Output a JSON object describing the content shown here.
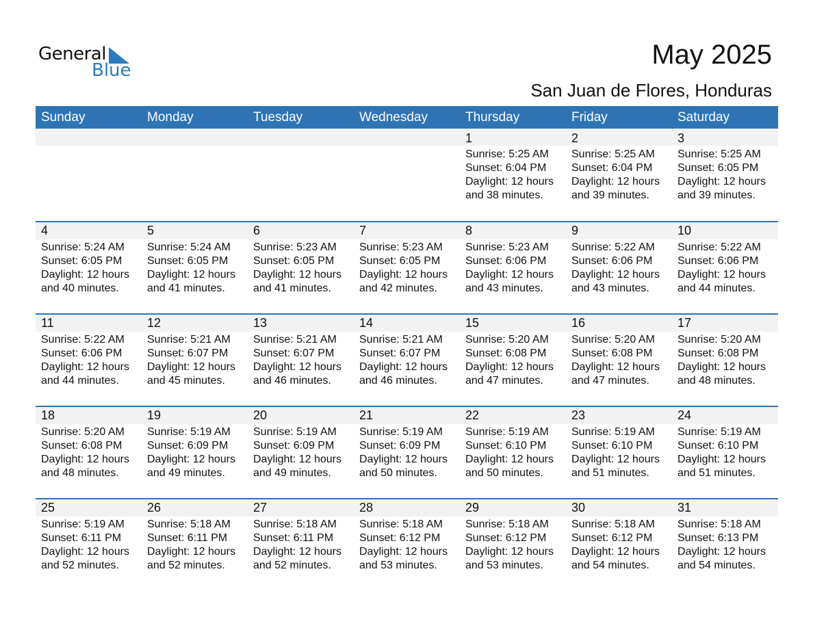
{
  "logo": {
    "line1": "General",
    "line2": "Blue"
  },
  "title": "May 2025",
  "subtitle": "San Juan de Flores, Honduras",
  "colors": {
    "header": "#2e74b5",
    "band": "#f2f2f2",
    "logo_blue": "#2a7bc0"
  },
  "weekdays": [
    "Sunday",
    "Monday",
    "Tuesday",
    "Wednesday",
    "Thursday",
    "Friday",
    "Saturday"
  ],
  "labels": {
    "sunrise": "Sunrise:",
    "sunset": "Sunset:",
    "daylight": "Daylight:",
    "and": "and"
  },
  "first_weekday_index": 4,
  "days": [
    {
      "date": "1",
      "sunrise": "5:25 AM",
      "sunset": "6:04 PM",
      "hours": "12 hours",
      "minutes": "38 minutes."
    },
    {
      "date": "2",
      "sunrise": "5:25 AM",
      "sunset": "6:04 PM",
      "hours": "12 hours",
      "minutes": "39 minutes."
    },
    {
      "date": "3",
      "sunrise": "5:25 AM",
      "sunset": "6:05 PM",
      "hours": "12 hours",
      "minutes": "39 minutes."
    },
    {
      "date": "4",
      "sunrise": "5:24 AM",
      "sunset": "6:05 PM",
      "hours": "12 hours",
      "minutes": "40 minutes."
    },
    {
      "date": "5",
      "sunrise": "5:24 AM",
      "sunset": "6:05 PM",
      "hours": "12 hours",
      "minutes": "41 minutes."
    },
    {
      "date": "6",
      "sunrise": "5:23 AM",
      "sunset": "6:05 PM",
      "hours": "12 hours",
      "minutes": "41 minutes."
    },
    {
      "date": "7",
      "sunrise": "5:23 AM",
      "sunset": "6:05 PM",
      "hours": "12 hours",
      "minutes": "42 minutes."
    },
    {
      "date": "8",
      "sunrise": "5:23 AM",
      "sunset": "6:06 PM",
      "hours": "12 hours",
      "minutes": "43 minutes."
    },
    {
      "date": "9",
      "sunrise": "5:22 AM",
      "sunset": "6:06 PM",
      "hours": "12 hours",
      "minutes": "43 minutes."
    },
    {
      "date": "10",
      "sunrise": "5:22 AM",
      "sunset": "6:06 PM",
      "hours": "12 hours",
      "minutes": "44 minutes."
    },
    {
      "date": "11",
      "sunrise": "5:22 AM",
      "sunset": "6:06 PM",
      "hours": "12 hours",
      "minutes": "44 minutes."
    },
    {
      "date": "12",
      "sunrise": "5:21 AM",
      "sunset": "6:07 PM",
      "hours": "12 hours",
      "minutes": "45 minutes."
    },
    {
      "date": "13",
      "sunrise": "5:21 AM",
      "sunset": "6:07 PM",
      "hours": "12 hours",
      "minutes": "46 minutes."
    },
    {
      "date": "14",
      "sunrise": "5:21 AM",
      "sunset": "6:07 PM",
      "hours": "12 hours",
      "minutes": "46 minutes."
    },
    {
      "date": "15",
      "sunrise": "5:20 AM",
      "sunset": "6:08 PM",
      "hours": "12 hours",
      "minutes": "47 minutes."
    },
    {
      "date": "16",
      "sunrise": "5:20 AM",
      "sunset": "6:08 PM",
      "hours": "12 hours",
      "minutes": "47 minutes."
    },
    {
      "date": "17",
      "sunrise": "5:20 AM",
      "sunset": "6:08 PM",
      "hours": "12 hours",
      "minutes": "48 minutes."
    },
    {
      "date": "18",
      "sunrise": "5:20 AM",
      "sunset": "6:08 PM",
      "hours": "12 hours",
      "minutes": "48 minutes."
    },
    {
      "date": "19",
      "sunrise": "5:19 AM",
      "sunset": "6:09 PM",
      "hours": "12 hours",
      "minutes": "49 minutes."
    },
    {
      "date": "20",
      "sunrise": "5:19 AM",
      "sunset": "6:09 PM",
      "hours": "12 hours",
      "minutes": "49 minutes."
    },
    {
      "date": "21",
      "sunrise": "5:19 AM",
      "sunset": "6:09 PM",
      "hours": "12 hours",
      "minutes": "50 minutes."
    },
    {
      "date": "22",
      "sunrise": "5:19 AM",
      "sunset": "6:10 PM",
      "hours": "12 hours",
      "minutes": "50 minutes."
    },
    {
      "date": "23",
      "sunrise": "5:19 AM",
      "sunset": "6:10 PM",
      "hours": "12 hours",
      "minutes": "51 minutes."
    },
    {
      "date": "24",
      "sunrise": "5:19 AM",
      "sunset": "6:10 PM",
      "hours": "12 hours",
      "minutes": "51 minutes."
    },
    {
      "date": "25",
      "sunrise": "5:19 AM",
      "sunset": "6:11 PM",
      "hours": "12 hours",
      "minutes": "52 minutes."
    },
    {
      "date": "26",
      "sunrise": "5:18 AM",
      "sunset": "6:11 PM",
      "hours": "12 hours",
      "minutes": "52 minutes."
    },
    {
      "date": "27",
      "sunrise": "5:18 AM",
      "sunset": "6:11 PM",
      "hours": "12 hours",
      "minutes": "52 minutes."
    },
    {
      "date": "28",
      "sunrise": "5:18 AM",
      "sunset": "6:12 PM",
      "hours": "12 hours",
      "minutes": "53 minutes."
    },
    {
      "date": "29",
      "sunrise": "5:18 AM",
      "sunset": "6:12 PM",
      "hours": "12 hours",
      "minutes": "53 minutes."
    },
    {
      "date": "30",
      "sunrise": "5:18 AM",
      "sunset": "6:12 PM",
      "hours": "12 hours",
      "minutes": "54 minutes."
    },
    {
      "date": "31",
      "sunrise": "5:18 AM",
      "sunset": "6:13 PM",
      "hours": "12 hours",
      "minutes": "54 minutes."
    }
  ]
}
